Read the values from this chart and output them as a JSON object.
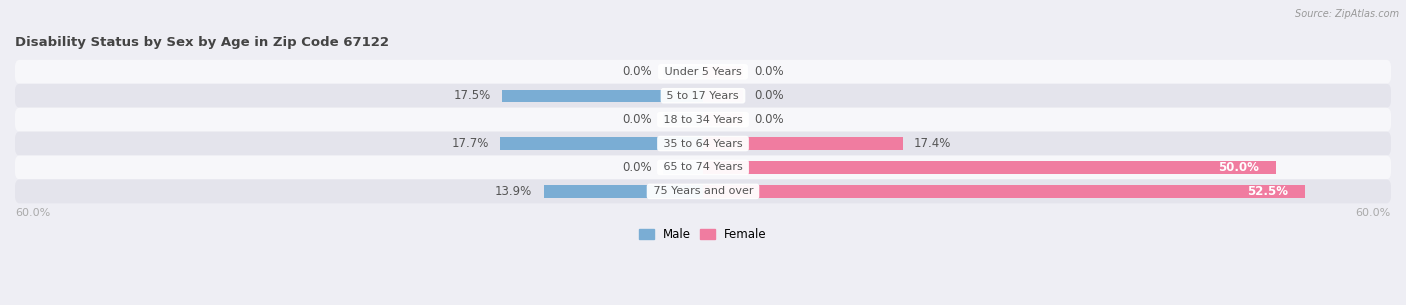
{
  "title": "Disability Status by Sex by Age in Zip Code 67122",
  "source": "Source: ZipAtlas.com",
  "categories": [
    "Under 5 Years",
    "5 to 17 Years",
    "18 to 34 Years",
    "35 to 64 Years",
    "65 to 74 Years",
    "75 Years and over"
  ],
  "male_values": [
    0.0,
    17.5,
    0.0,
    17.7,
    0.0,
    13.9
  ],
  "female_values": [
    0.0,
    0.0,
    0.0,
    17.4,
    50.0,
    52.5
  ],
  "male_color": "#7aadd4",
  "female_color": "#f07ca0",
  "male_label": "Male",
  "female_label": "Female",
  "xlim": 60.0,
  "bar_height": 0.52,
  "bg_color": "#eeeef4",
  "row_bg_light": "#f7f7fa",
  "row_bg_dark": "#e4e4ec",
  "title_color": "#444444",
  "source_color": "#999999",
  "label_color": "#555555",
  "axis_label_color": "#aaaaaa",
  "value_fontsize": 8.5,
  "title_fontsize": 9.5,
  "cat_fontsize": 8,
  "legend_fontsize": 8.5,
  "axis_tick_fontsize": 8,
  "stub_size": 3.5
}
